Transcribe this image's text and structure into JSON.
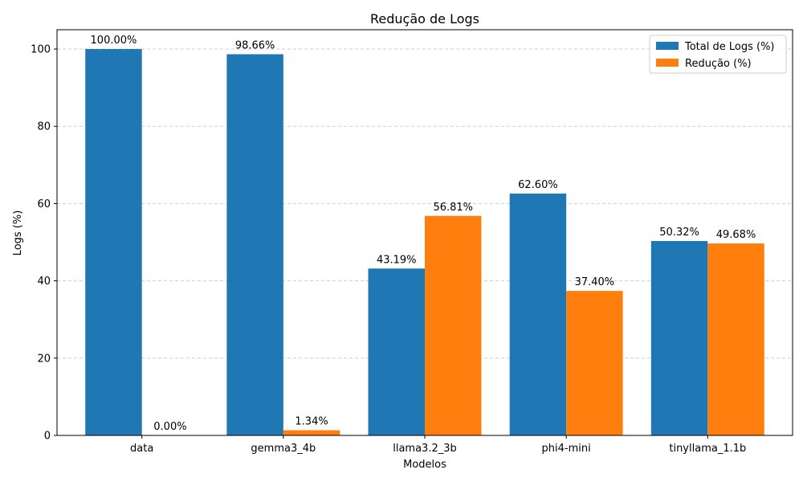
{
  "chart_data": {
    "type": "bar",
    "title": "Redução de Logs",
    "xlabel": "Modelos",
    "ylabel": "Logs (%)",
    "categories": [
      "data",
      "gemma3_4b",
      "llama3.2_3b",
      "phi4-mini",
      "tinyllama_1.1b"
    ],
    "series": [
      {
        "name": "Total de Logs (%)",
        "values": [
          100.0,
          98.66,
          43.19,
          62.6,
          50.32
        ],
        "labels": [
          "100.00%",
          "98.66%",
          "43.19%",
          "62.60%",
          "50.32%"
        ],
        "color": "#1f77b4"
      },
      {
        "name": "Redução (%)",
        "values": [
          0.0,
          1.34,
          56.81,
          37.4,
          49.68
        ],
        "labels": [
          "0.00%",
          "1.34%",
          "56.81%",
          "37.40%",
          "49.68%"
        ],
        "color": "#ff7f0e"
      }
    ],
    "ylim": [
      0,
      105
    ],
    "yticks": [
      0,
      20,
      40,
      60,
      80,
      100
    ],
    "grid": "y-dashed",
    "legend": "top-right"
  }
}
